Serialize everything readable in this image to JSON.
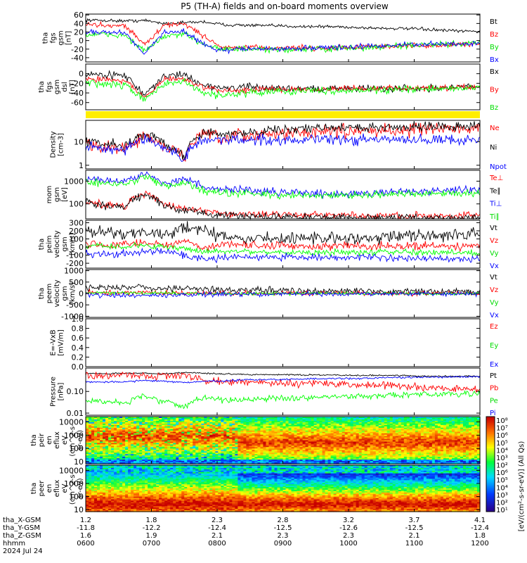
{
  "title": "P5 (TH-A) fields and on-board moments overview",
  "colors": {
    "black": "#000000",
    "red": "#ff0000",
    "green": "#00ff00",
    "blue": "#0000ff",
    "sunlight_bar": "#ffee00"
  },
  "colorbar": {
    "label": "[eV/(cm²-s-sr-eV)] (All Qs)",
    "labels": [
      "10⁸",
      "10⁷",
      "10⁶",
      "10⁵",
      "10⁴",
      "10³",
      "10²",
      "10⁶",
      "10⁵",
      "10⁴",
      "10³",
      "10²",
      "10¹"
    ]
  },
  "chart_data": [
    {
      "type": "line",
      "id": "fgs_gsm",
      "ylabel": [
        "tha",
        "fgs",
        "gsm",
        "[nT]"
      ],
      "ylim": [
        -50,
        62
      ],
      "yticks": [
        60,
        40,
        20,
        0,
        -20,
        -40
      ],
      "series": [
        {
          "name": "Bt",
          "color": "#000000",
          "base": [
            48,
            47,
            46,
            47,
            40,
            42,
            44,
            37,
            36,
            35,
            34,
            33,
            33,
            32,
            30,
            29,
            28,
            27,
            24,
            22,
            22
          ],
          "noise": 3
        },
        {
          "name": "Bz",
          "color": "#ff0000",
          "base": [
            38,
            36,
            35,
            -10,
            36,
            40,
            10,
            -18,
            -16,
            -17,
            -18,
            -16,
            -18,
            -16,
            -15,
            -14,
            -12,
            -12,
            -12,
            -8,
            -8
          ],
          "noise": 5
        },
        {
          "name": "By",
          "color": "#00ff00",
          "base": [
            14,
            14,
            12,
            -25,
            10,
            14,
            -8,
            -20,
            -20,
            -22,
            -22,
            -20,
            -20,
            -18,
            -18,
            -15,
            -12,
            -10,
            -10,
            -8,
            -6
          ],
          "noise": 6
        },
        {
          "name": "Bx",
          "color": "#0000ff",
          "base": [
            22,
            20,
            18,
            -30,
            20,
            22,
            -10,
            -25,
            -18,
            -20,
            -20,
            -18,
            -16,
            -16,
            -14,
            -12,
            -10,
            -10,
            -8,
            -8,
            -6
          ],
          "noise": 5
        }
      ]
    },
    {
      "type": "line",
      "id": "fgs_gsm_dsl",
      "ylabel": [
        "tha",
        "fgs",
        "gsm",
        "dsl",
        "[nT]"
      ],
      "ylim": [
        -75,
        20
      ],
      "yticks": [
        0,
        -20,
        -40,
        -60
      ],
      "series": [
        {
          "name": "Bx",
          "color": "#000000",
          "base": [
            -2,
            -2,
            -3,
            -45,
            -5,
            -2,
            -25,
            -30,
            -28,
            -30,
            -30,
            -30,
            -32,
            -30,
            -30,
            -32,
            -30,
            -30,
            -30,
            -28,
            -26
          ],
          "noise": 6
        },
        {
          "name": "By",
          "color": "#ff0000",
          "base": [
            -10,
            -12,
            -14,
            -50,
            -12,
            -10,
            -30,
            -35,
            -34,
            -33,
            -32,
            -32,
            -32,
            -32,
            -31,
            -30,
            -30,
            -30,
            -30,
            -28,
            -28
          ],
          "noise": 5
        },
        {
          "name": "Bz",
          "color": "#00ff00",
          "base": [
            -20,
            -22,
            -24,
            -55,
            -20,
            -18,
            -40,
            -45,
            -40,
            -38,
            -36,
            -36,
            -35,
            -35,
            -34,
            -34,
            -33,
            -32,
            -32,
            -30,
            -30
          ],
          "noise": 6
        }
      ]
    },
    {
      "type": "bar_strip",
      "id": "sunlight",
      "color": "#ffee00"
    },
    {
      "type": "line",
      "id": "density",
      "scale": "log",
      "ylabel": [
        "Density",
        "[cm-3]"
      ],
      "ylim": [
        0.7,
        80
      ],
      "yticks": [
        10,
        1
      ],
      "series": [
        {
          "name": "Ne",
          "color": "#ff0000",
          "base": [
            8,
            6,
            5,
            15,
            6,
            2,
            20,
            12,
            18,
            20,
            22,
            25,
            26,
            28,
            28,
            30,
            32,
            34,
            36,
            36,
            38
          ],
          "noise": 0.5
        },
        {
          "name": "Ni",
          "color": "#000000",
          "base": [
            10,
            8,
            7,
            20,
            8,
            2,
            25,
            18,
            25,
            30,
            32,
            36,
            38,
            38,
            40,
            40,
            42,
            44,
            46,
            46,
            48
          ],
          "noise": 0.35
        },
        {
          "name": "Npot",
          "color": "#0000ff",
          "base": [
            6,
            5,
            4,
            12,
            5,
            1.5,
            12,
            12,
            12,
            12,
            12,
            12,
            12,
            12,
            12,
            12,
            12,
            12,
            12,
            12,
            12
          ],
          "noise": 0.4
        }
      ]
    },
    {
      "type": "line",
      "id": "temperature",
      "scale": "log",
      "ylabel": [
        "mom",
        "gsm",
        "[eV]"
      ],
      "ylim": [
        22,
        3000
      ],
      "yticks": [
        1000,
        100
      ],
      "series": [
        {
          "name": "Te⊥",
          "color": "#ff0000",
          "base": [
            120,
            90,
            80,
            300,
            90,
            60,
            50,
            40,
            35,
            35,
            35,
            33,
            32,
            32,
            30,
            30,
            30,
            30,
            30,
            30,
            30
          ],
          "noise": 0.3
        },
        {
          "name": "Te∥",
          "color": "#000000",
          "base": [
            110,
            80,
            70,
            250,
            80,
            50,
            40,
            30,
            28,
            28,
            27,
            27,
            26,
            26,
            25,
            25,
            25,
            25,
            25,
            25,
            25
          ],
          "noise": 0.3
        },
        {
          "name": "Ti⊥",
          "color": "#0000ff",
          "base": [
            1300,
            1100,
            1000,
            2000,
            800,
            1200,
            500,
            400,
            450,
            350,
            330,
            300,
            280,
            290,
            300,
            320,
            350,
            370,
            380,
            400,
            400
          ],
          "noise": 0.3
        },
        {
          "name": "Ti∥",
          "color": "#00ff00",
          "base": [
            900,
            800,
            700,
            1500,
            600,
            900,
            350,
            300,
            300,
            250,
            250,
            240,
            230,
            230,
            240,
            250,
            260,
            270,
            280,
            290,
            300
          ],
          "noise": 0.3
        }
      ]
    },
    {
      "type": "line",
      "id": "peim_velocity",
      "ylabel": [
        "tha",
        "peim",
        "velocity",
        "gsm",
        "[km/s]"
      ],
      "ylim": [
        -260,
        330
      ],
      "yticks": [
        300,
        200,
        100,
        0,
        -100,
        -200
      ],
      "series": [
        {
          "name": "Vt",
          "color": "#000000",
          "base": [
            220,
            180,
            160,
            200,
            150,
            250,
            200,
            120,
            100,
            110,
            100,
            110,
            110,
            110,
            120,
            120,
            140,
            140,
            150,
            150,
            160
          ],
          "noise": 60
        },
        {
          "name": "Vz",
          "color": "#ff0000",
          "base": [
            50,
            20,
            30,
            60,
            20,
            80,
            -20,
            40,
            30,
            10,
            20,
            10,
            10,
            20,
            10,
            10,
            20,
            10,
            10,
            10,
            10
          ],
          "noise": 40
        },
        {
          "name": "Vy",
          "color": "#00ff00",
          "base": [
            0,
            10,
            0,
            20,
            0,
            -20,
            -60,
            -50,
            -50,
            -60,
            -60,
            -60,
            -70,
            -60,
            -60,
            -60,
            -60,
            -70,
            -60,
            -70,
            -70
          ],
          "noise": 30
        },
        {
          "name": "Vx",
          "color": "#0000ff",
          "base": [
            -80,
            -90,
            -80,
            -60,
            -50,
            -100,
            -150,
            -130,
            -120,
            -120,
            -120,
            -130,
            -130,
            -130,
            -120,
            -130,
            -140,
            -150,
            -140,
            -150,
            -150
          ],
          "noise": 35
        }
      ]
    },
    {
      "type": "line",
      "id": "peem_velocity",
      "ylabel": [
        "tha",
        "peem",
        "velocity",
        "gsm",
        "[km/s]"
      ],
      "ylim": [
        -1050,
        1050
      ],
      "yticks": [
        1000,
        500,
        0,
        -500,
        -1000
      ],
      "series": [
        {
          "name": "Vt",
          "color": "#000000",
          "base": [
            250,
            250,
            220,
            300,
            200,
            250,
            220,
            150,
            150,
            150,
            120,
            120,
            110,
            110,
            100,
            100,
            100,
            90,
            90,
            80,
            80
          ],
          "noise": 120
        },
        {
          "name": "Vz",
          "color": "#ff0000",
          "base": [
            50,
            40,
            30,
            40,
            30,
            20,
            10,
            10,
            0,
            0,
            0,
            0,
            0,
            0,
            0,
            0,
            0,
            0,
            0,
            0,
            0
          ],
          "noise": 80
        },
        {
          "name": "Vy",
          "color": "#00ff00",
          "base": [
            30,
            20,
            20,
            30,
            10,
            0,
            0,
            0,
            0,
            0,
            0,
            0,
            0,
            0,
            0,
            0,
            0,
            0,
            0,
            0,
            0
          ],
          "noise": 60
        },
        {
          "name": "Vx",
          "color": "#0000ff",
          "base": [
            -60,
            -80,
            -70,
            -100,
            -80,
            -60,
            -40,
            -40,
            -30,
            -30,
            -20,
            -20,
            -20,
            -20,
            -10,
            -10,
            -10,
            -10,
            -10,
            -10,
            -10
          ],
          "noise": 80
        }
      ]
    },
    {
      "type": "line",
      "id": "e_field",
      "ylabel": [
        "E=-VxB",
        "[mV/m]"
      ],
      "ylim": [
        0,
        1
      ],
      "yticks": [
        1.0,
        0.8,
        0.6,
        0.4,
        0.2,
        0.0
      ],
      "series": [
        {
          "name": "Ez",
          "color": "#ff0000",
          "values": []
        },
        {
          "name": "Ey",
          "color": "#00ff00",
          "values": []
        },
        {
          "name": "Ex",
          "color": "#0000ff",
          "values": []
        }
      ]
    },
    {
      "type": "line",
      "id": "pressure",
      "scale": "log",
      "ylabel": [
        "Pressure",
        "[nPa]"
      ],
      "ylim": [
        0.008,
        1.2
      ],
      "yticks": [
        0.1,
        0.01
      ],
      "series": [
        {
          "name": "Pt",
          "color": "#000000",
          "base": [
            0.7,
            0.65,
            0.7,
            0.7,
            0.65,
            0.75,
            0.7,
            0.65,
            0.6,
            0.6,
            0.6,
            0.58,
            0.58,
            0.56,
            0.55,
            0.55,
            0.55,
            0.5,
            0.5,
            0.5,
            0.5
          ],
          "noise": 0.06
        },
        {
          "name": "Pb",
          "color": "#ff0000",
          "base": [
            0.6,
            0.55,
            0.6,
            0.5,
            0.55,
            0.6,
            0.3,
            0.28,
            0.27,
            0.26,
            0.25,
            0.24,
            0.23,
            0.22,
            0.2,
            0.19,
            0.18,
            0.15,
            0.14,
            0.13,
            0.12
          ],
          "noise": 0.3
        },
        {
          "name": "Pe",
          "color": "#00ff00",
          "base": [
            0.04,
            0.035,
            0.03,
            0.06,
            0.035,
            0.02,
            0.05,
            0.04,
            0.04,
            0.045,
            0.05,
            0.05,
            0.055,
            0.06,
            0.06,
            0.065,
            0.07,
            0.07,
            0.075,
            0.075,
            0.08
          ],
          "noise": 0.25
        },
        {
          "name": "Pi",
          "color": "#0000ff",
          "base": [
            0.28,
            0.27,
            0.28,
            0.32,
            0.3,
            0.25,
            0.3,
            0.3,
            0.35,
            0.35,
            0.36,
            0.38,
            0.38,
            0.4,
            0.4,
            0.42,
            0.44,
            0.46,
            0.46,
            0.48,
            0.5
          ],
          "noise": 0.08
        }
      ]
    },
    {
      "type": "heatmap",
      "id": "peir_en_eflux",
      "ylabel": [
        "tha",
        "peir",
        "en",
        "eflux",
        "eV",
        "(cm^2-s-",
        "sr-eV)"
      ],
      "ylim": [
        7,
        25000
      ],
      "yticks": [
        10000,
        1000,
        100,
        10
      ],
      "scale": "log",
      "zlim_log10": [
        3,
        8
      ]
    },
    {
      "type": "heatmap",
      "id": "peer_en_eflux",
      "ylabel": [
        "tha",
        "peer",
        "en",
        "eflux",
        "eV",
        "(cm^2-s-",
        "sr-eV)"
      ],
      "ylim": [
        7,
        25000
      ],
      "yticks": [
        10000,
        1000,
        100,
        10
      ],
      "scale": "log",
      "zlim_log10": [
        1,
        8
      ]
    }
  ],
  "xaxis": {
    "range_hours": [
      6,
      12
    ],
    "tick_hours": [
      6,
      7,
      8,
      9,
      10,
      11,
      12
    ],
    "rows": [
      {
        "label": "tha_X-GSM",
        "values": [
          "1.2",
          "1.8",
          "2.3",
          "2.8",
          "3.2",
          "3.7",
          "4.1"
        ]
      },
      {
        "label": "tha_Y-GSM",
        "values": [
          "-11.8",
          "-12.2",
          "-12.4",
          "-12.5",
          "-12.6",
          "-12.5",
          "-12.4"
        ]
      },
      {
        "label": "tha_Z-GSM",
        "values": [
          "1.6",
          "1.9",
          "2.1",
          "2.3",
          "2.3",
          "2.1",
          "1.8"
        ]
      },
      {
        "label": "hhmm",
        "values": [
          "0600",
          "0700",
          "0800",
          "0900",
          "1000",
          "1100",
          "1200"
        ]
      }
    ],
    "date": "2024 Jul 24"
  }
}
